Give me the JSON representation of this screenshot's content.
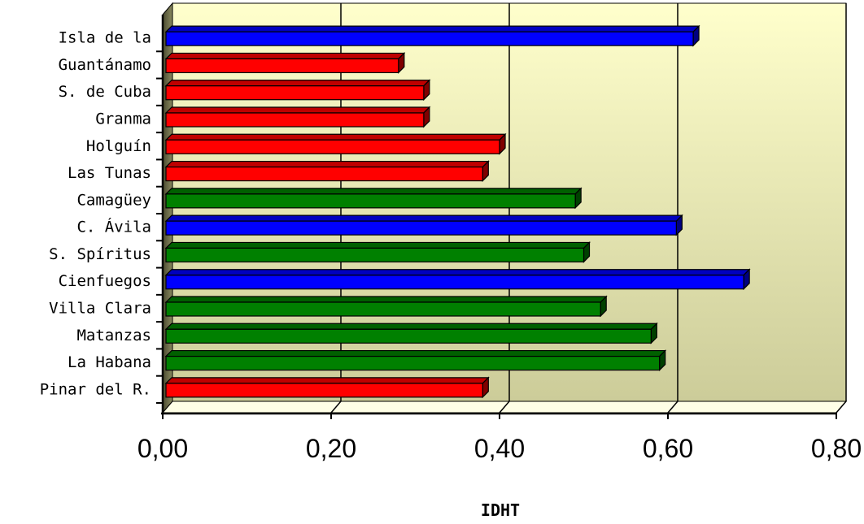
{
  "chart_data": {
    "type": "bar",
    "orientation": "horizontal",
    "categories": [
      "Pinar del R.",
      "La Habana",
      "Matanzas",
      "Villa Clara",
      "Cienfuegos",
      "S. Spíritus",
      "C. Ávila",
      "Camagüey",
      "Las Tunas",
      "Holguín",
      "Granma",
      "S. de Cuba",
      "Guantánamo",
      "Isla de la"
    ],
    "values": [
      0.38,
      0.59,
      0.58,
      0.52,
      0.69,
      0.5,
      0.61,
      0.49,
      0.38,
      0.4,
      0.31,
      0.31,
      0.28,
      0.63
    ],
    "bar_colors": [
      "#ff0000",
      "#008000",
      "#008000",
      "#008000",
      "#0000ff",
      "#008000",
      "#0000ff",
      "#008000",
      "#ff0000",
      "#ff0000",
      "#ff0000",
      "#ff0000",
      "#ff0000",
      "#0000ff"
    ],
    "xlabel": "IDHT",
    "ylabel": "",
    "xlim": [
      0,
      0.8
    ],
    "x_ticks": [
      0,
      0.2,
      0.4,
      0.6,
      0.8
    ],
    "x_tick_labels": [
      "0,00",
      "0,20",
      "0,40",
      "0,60",
      "0,80"
    ],
    "grid": true,
    "style": "3d",
    "background": [
      "#ffffcc",
      "#cccc99"
    ]
  }
}
